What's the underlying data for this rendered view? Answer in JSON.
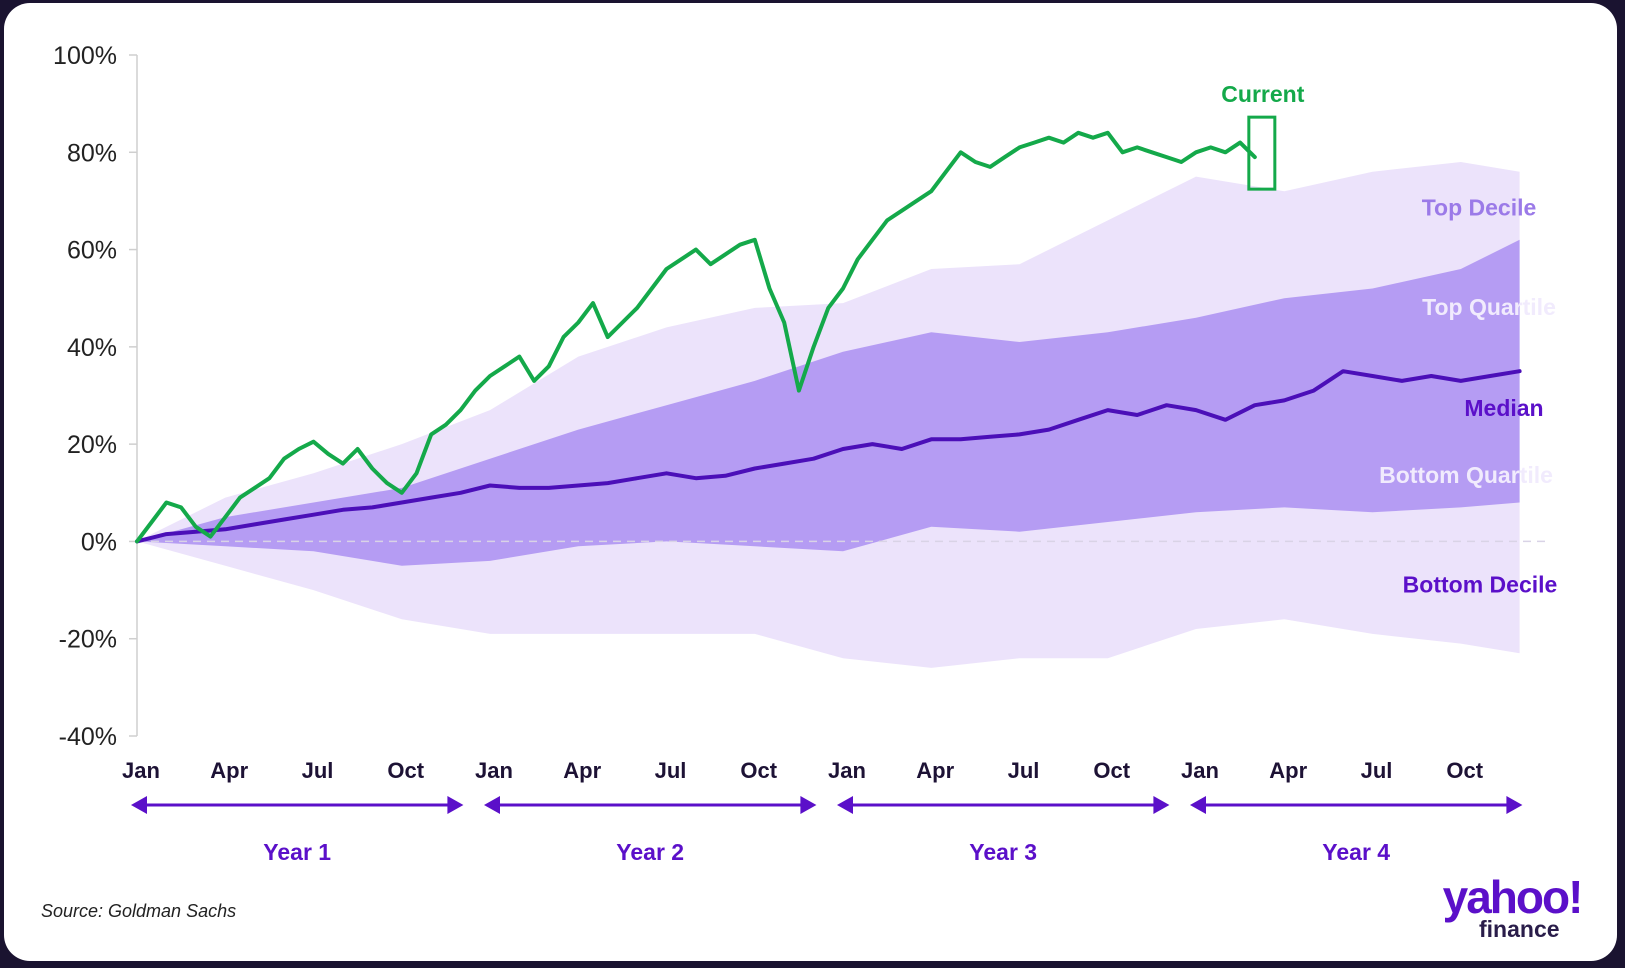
{
  "chart_data": {
    "type": "area",
    "y_tick_labels": [
      "100%",
      "80%",
      "60%",
      "40%",
      "20%",
      "0%",
      "-20%",
      "-40%"
    ],
    "y_ticks": [
      100,
      80,
      60,
      40,
      20,
      0,
      -20,
      -40
    ],
    "ylim": [
      -40,
      100
    ],
    "xlim": [
      0,
      48
    ],
    "month_labels": [
      "Jan",
      "Apr",
      "Jul",
      "Oct",
      "Jan",
      "Apr",
      "Jul",
      "Oct",
      "Jan",
      "Apr",
      "Jul",
      "Oct",
      "Jan",
      "Apr",
      "Jul",
      "Oct"
    ],
    "month_positions": [
      0,
      3,
      6,
      9,
      12,
      15,
      18,
      21,
      24,
      27,
      30,
      33,
      36,
      39,
      42,
      45
    ],
    "years": [
      "Year 1",
      "Year 2",
      "Year 3",
      "Year 4"
    ],
    "band_labels": {
      "top_decile": "Top Decile",
      "top_quartile": "Top Quartile",
      "median": "Median",
      "bottom_quartile": "Bottom Quartile",
      "bottom_decile": "Bottom Decile"
    },
    "bands": {
      "x": [
        0,
        3,
        6,
        9,
        12,
        15,
        18,
        21,
        24,
        27,
        30,
        33,
        36,
        39,
        42,
        45,
        47
      ],
      "p90": [
        0,
        9,
        14,
        20,
        27,
        38,
        44,
        48,
        49,
        56,
        57,
        66,
        75,
        72,
        76,
        78,
        76
      ],
      "p75": [
        0,
        5,
        8,
        11,
        17,
        23,
        28,
        33,
        39,
        43,
        41,
        43,
        46,
        50,
        52,
        56,
        62
      ],
      "p25": [
        0,
        -1,
        -2,
        -5,
        -4,
        -1,
        0,
        -1,
        -2,
        3,
        2,
        4,
        6,
        7,
        6,
        7,
        8
      ],
      "p10": [
        0,
        -5,
        -10,
        -16,
        -19,
        -19,
        -19,
        -19,
        -24,
        -26,
        -24,
        -24,
        -18,
        -16,
        -19,
        -21,
        -23
      ]
    },
    "series": [
      {
        "name": "Median",
        "color": "#4b0fb8",
        "x": [
          0,
          1,
          2,
          3,
          4,
          5,
          6,
          7,
          8,
          9,
          10,
          11,
          12,
          13,
          14,
          15,
          16,
          17,
          18,
          19,
          20,
          21,
          22,
          23,
          24,
          25,
          26,
          27,
          28,
          29,
          30,
          31,
          32,
          33,
          34,
          35,
          36,
          37,
          38,
          39,
          40,
          41,
          42,
          43,
          44,
          45,
          46,
          47
        ],
        "y": [
          0,
          1.5,
          2,
          2.5,
          3.5,
          4.5,
          5.5,
          6.5,
          7,
          8,
          9,
          10,
          11.5,
          11,
          11,
          11.5,
          12,
          13,
          14,
          13,
          13.5,
          15,
          16,
          17,
          19,
          20,
          19,
          21,
          21,
          21.5,
          22,
          23,
          25,
          27,
          26,
          28,
          27,
          25,
          28,
          29,
          31,
          35,
          34,
          33,
          34,
          33,
          34,
          35
        ]
      },
      {
        "name": "Current",
        "color": "#14a94a",
        "x": [
          0,
          0.5,
          1,
          1.5,
          2,
          2.5,
          3,
          3.5,
          4,
          4.5,
          5,
          5.5,
          6,
          6.5,
          7,
          7.5,
          8,
          8.5,
          9,
          9.5,
          10,
          10.5,
          11,
          11.5,
          12,
          12.5,
          13,
          13.5,
          14,
          14.5,
          15,
          15.5,
          16,
          16.5,
          17,
          17.5,
          18,
          18.5,
          19,
          19.5,
          20,
          20.5,
          21,
          21.5,
          22,
          22.5,
          23,
          23.5,
          24,
          24.5,
          25,
          25.5,
          26,
          26.5,
          27,
          27.5,
          28,
          28.5,
          29,
          29.5,
          30,
          30.5,
          31,
          31.5,
          32,
          32.5,
          33,
          33.5,
          34,
          34.5,
          35,
          35.5,
          36,
          36.5,
          37,
          37.5,
          38
        ],
        "y": [
          0,
          4,
          8,
          7,
          3,
          1,
          5,
          9,
          11,
          13,
          17,
          19,
          20.5,
          18,
          16,
          19,
          15,
          12,
          10,
          14,
          22,
          24,
          27,
          31,
          34,
          36,
          38,
          33,
          36,
          42,
          45,
          49,
          42,
          45,
          48,
          52,
          56,
          58,
          60,
          57,
          59,
          61,
          62,
          52,
          45,
          31,
          40,
          48,
          52,
          58,
          62,
          66,
          68,
          70,
          72,
          76,
          80,
          78,
          77,
          79,
          81,
          82,
          83,
          82,
          84,
          83,
          84,
          80,
          81,
          80,
          79,
          78,
          80,
          81,
          80,
          82,
          79
        ]
      }
    ],
    "current_label": "Current",
    "median_label": "Median",
    "zero_line": "dashed",
    "grid": false
  },
  "source_text": "Source: Goldman Sachs",
  "logo": {
    "main": "yahoo!",
    "sub": "finance"
  },
  "colors": {
    "p90_band": "#ece3fb",
    "p75_band": "#b59cf3",
    "current": "#14a94a",
    "median": "#4b0fb8",
    "accent": "#5b10c9",
    "top_decile_text": "#9b7ae8",
    "light_text": "#f1ebfd"
  }
}
